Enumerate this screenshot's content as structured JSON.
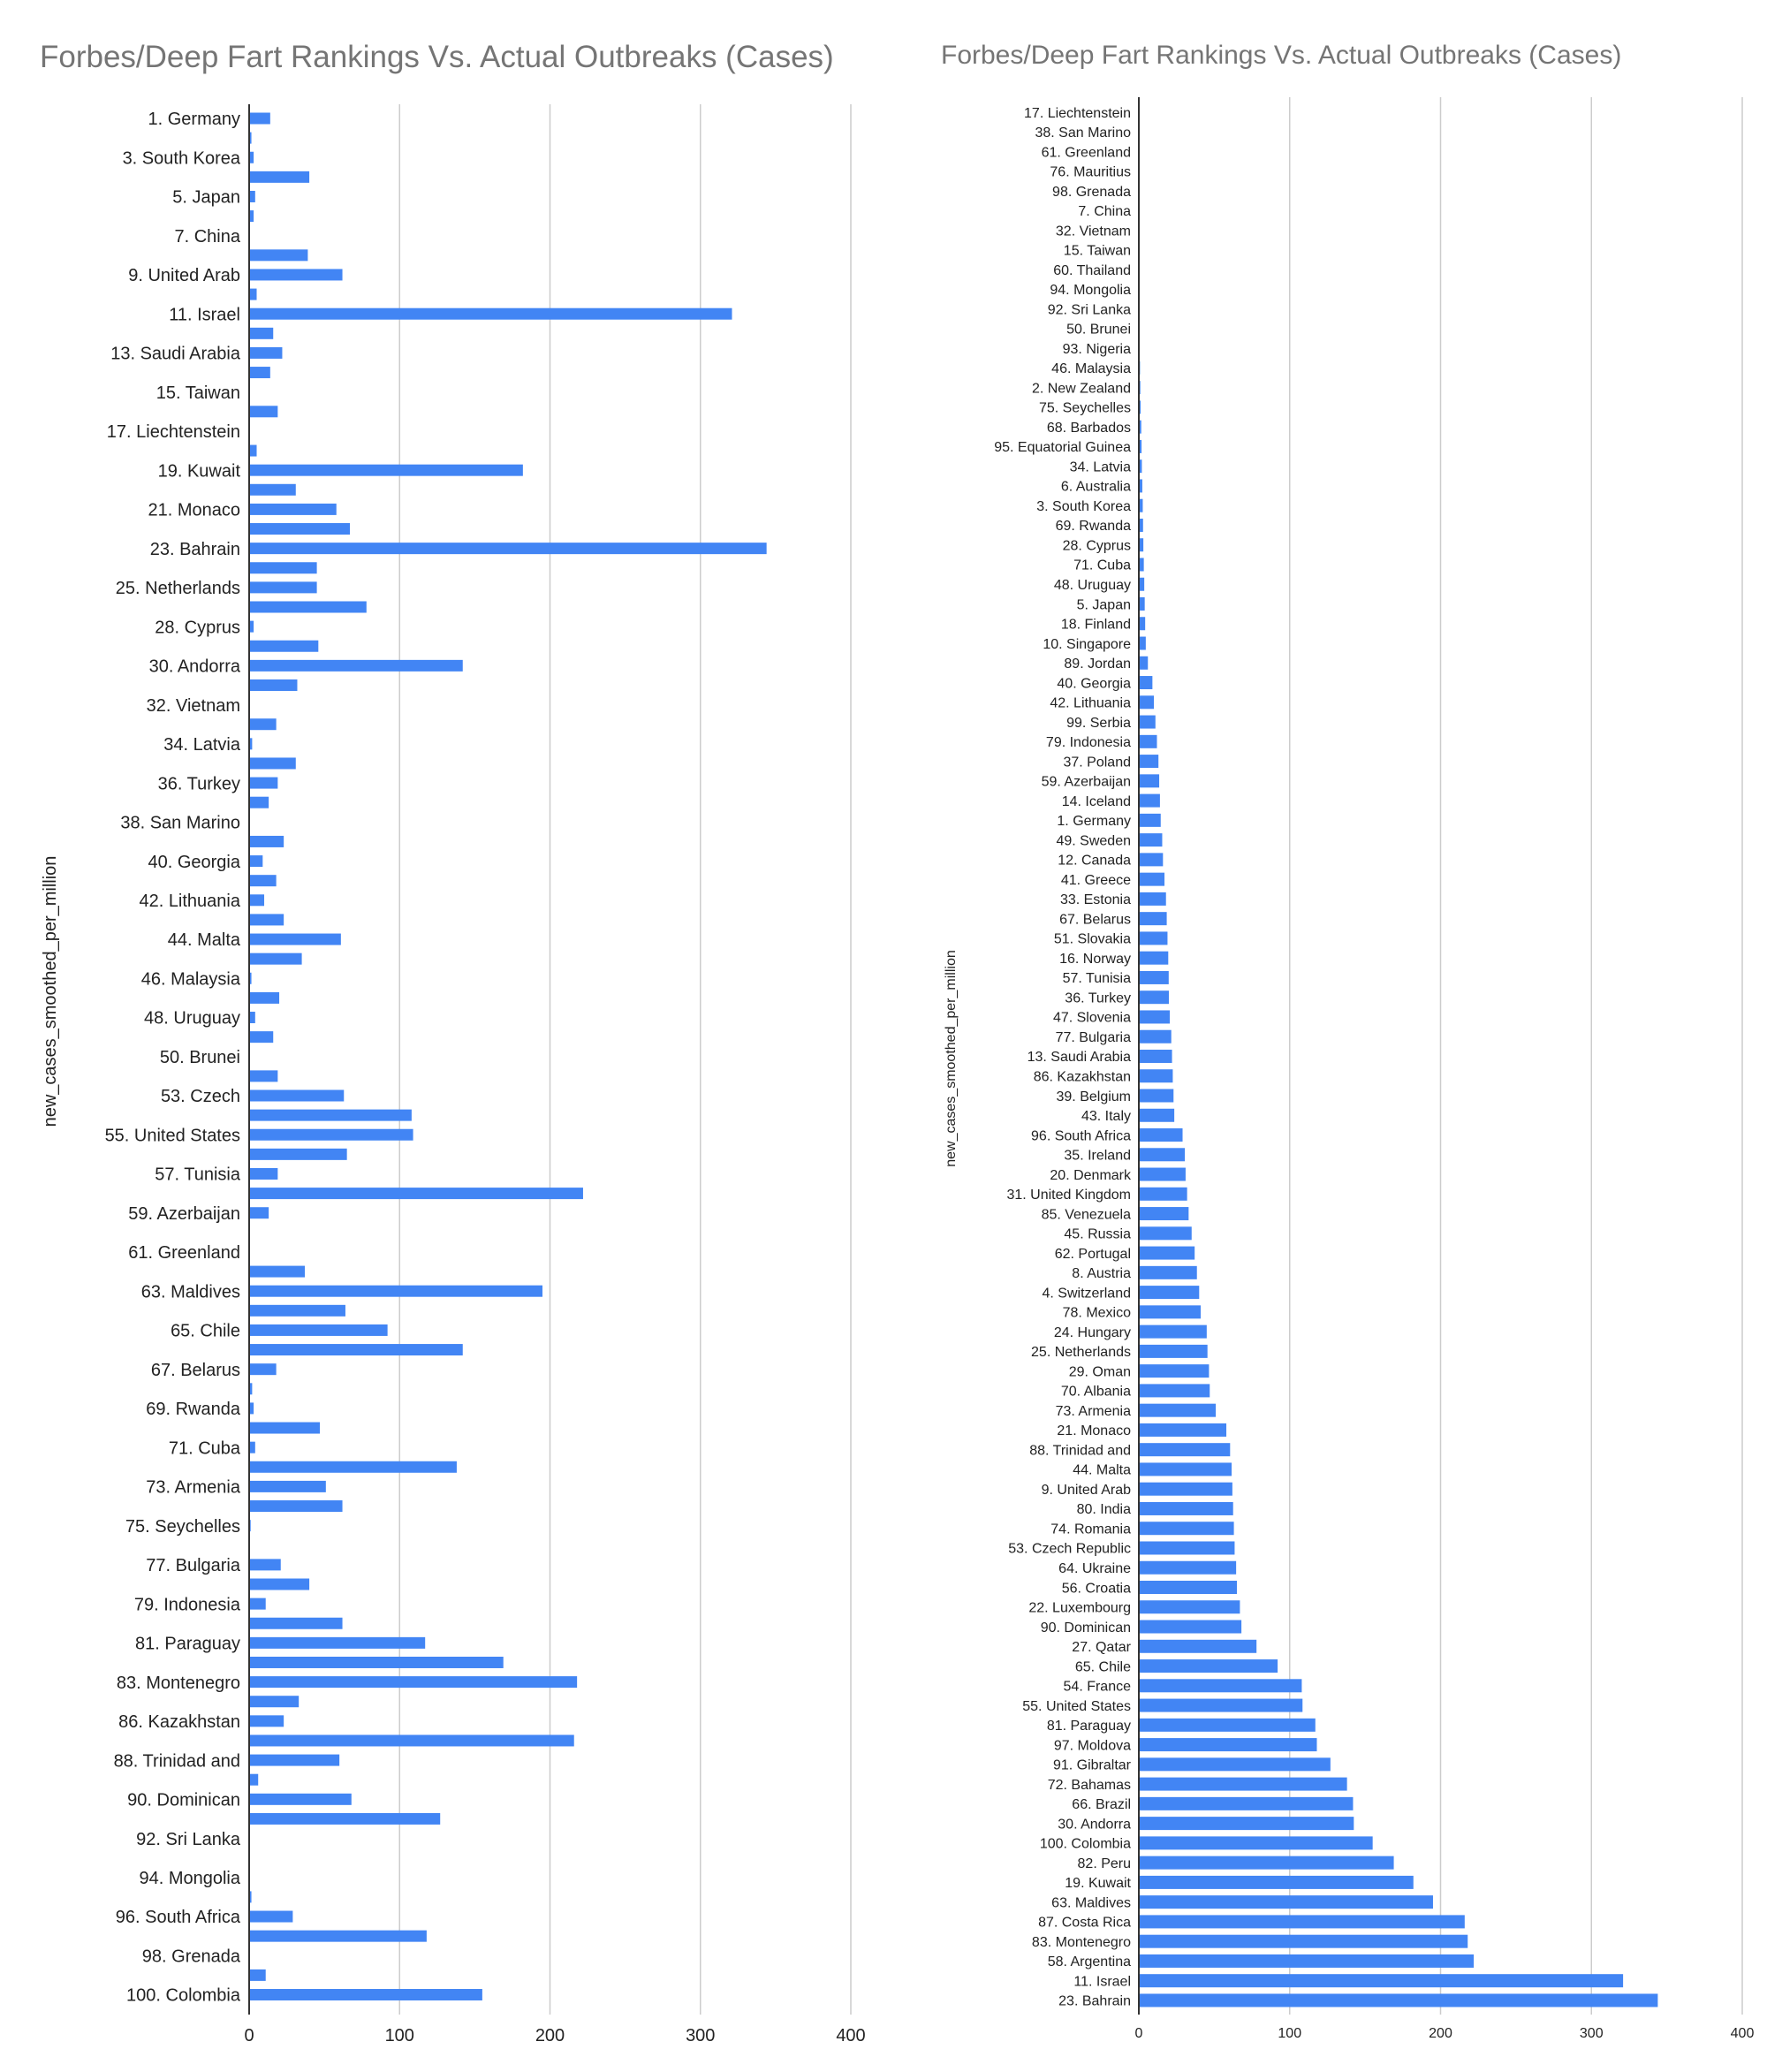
{
  "colors": {
    "bar": "#4285f4",
    "grid": "#cccccc",
    "title": "#757575"
  },
  "chart_data": [
    {
      "type": "bar",
      "orientation": "horizontal",
      "title": "Forbes/Deep Fart Rankings Vs. Actual Outbreaks (Cases)",
      "xlabel": "",
      "ylabel": "new_cases_smoothed_per_million",
      "xlim": [
        0,
        400
      ],
      "x_ticks": [
        "0",
        "100",
        "200",
        "300",
        "400"
      ],
      "grid": true,
      "legend": "none",
      "categories": [
        "1. Germany",
        "2. New Zealand",
        "3. South Korea",
        "4. Switzerland",
        "5. Japan",
        "6. Australia",
        "7. China",
        "8. Austria",
        "9. United Arab",
        "10. Singapore",
        "11. Israel",
        "12. Canada",
        "13. Saudi Arabia",
        "14. Iceland",
        "15. Taiwan",
        "16. Norway",
        "17. Liechtenstein",
        "18. Finland",
        "19. Kuwait",
        "20. Denmark",
        "21. Monaco",
        "22. Luxembourg",
        "23. Bahrain",
        "24. Hungary",
        "25. Netherlands",
        "27. Qatar",
        "28. Cyprus",
        "29. Oman",
        "30. Andorra",
        "31. United Kingdom",
        "32. Vietnam",
        "33. Estonia",
        "34. Latvia",
        "35. Ireland",
        "36. Turkey",
        "37. Poland",
        "38. San Marino",
        "39. Belgium",
        "40. Georgia",
        "41. Greece",
        "42. Lithuania",
        "43. Italy",
        "44. Malta",
        "45. Russia",
        "46. Malaysia",
        "47. Slovenia",
        "48. Uruguay",
        "49. Sweden",
        "50. Brunei",
        "51. Slovakia",
        "53. Czech",
        "54. France",
        "55. United States",
        "56. Croatia",
        "57. Tunisia",
        "58. Argentina",
        "59. Azerbaijan",
        "60. Thailand",
        "61. Greenland",
        "62. Portugal",
        "63. Maldives",
        "64. Ukraine",
        "65. Chile",
        "66. Brazil",
        "67. Belarus",
        "68. Barbados",
        "69. Rwanda",
        "70. Albania",
        "71. Cuba",
        "72. Bahamas",
        "73. Armenia",
        "74. Romania",
        "75. Seychelles",
        "76. Mauritius",
        "77. Bulgaria",
        "78. Mexico",
        "79. Indonesia",
        "80. India",
        "81. Paraguay",
        "82. Peru",
        "83. Montenegro",
        "85. Venezuela",
        "86. Kazakhstan",
        "87. Costa Rica",
        "88. Trinidad and",
        "89. Jordan",
        "90. Dominican",
        "91. Gibraltar",
        "92. Sri Lanka",
        "93. Nigeria",
        "94. Mongolia",
        "95. Equatorial Guinea",
        "96. South Africa",
        "97. Moldova",
        "98. Grenada",
        "99. Serbia",
        "100. Colombia"
      ],
      "visible_tick_labels": [
        "1. Germany",
        "3. South Korea",
        "5. Japan",
        "7. China",
        "9. United Arab",
        "11. Israel",
        "13. Saudi Arabia",
        "15. Taiwan",
        "17. Liechtenstein",
        "19. Kuwait",
        "21. Monaco",
        "23. Bahrain",
        "25. Netherlands",
        "28. Cyprus",
        "30. Andorra",
        "32. Vietnam",
        "34. Latvia",
        "36. Turkey",
        "38. San Marino",
        "40. Georgia",
        "42. Lithuania",
        "44. Malta",
        "46. Malaysia",
        "48. Uruguay",
        "50. Brunei",
        "53. Czech",
        "55. United States",
        "57. Tunisia",
        "59. Azerbaijan",
        "61. Greenland",
        "63. Maldives",
        "65. Chile",
        "67. Belarus",
        "69. Rwanda",
        "71. Cuba",
        "73. Armenia",
        "75. Seychelles",
        "77. Bulgaria",
        "79. Indonesia",
        "81. Paraguay",
        "83. Montenegro",
        "86. Kazakhstan",
        "88. Trinidad and",
        "90. Dominican",
        "92. Sri Lanka",
        "94. Mongolia",
        "96. South Africa",
        "98. Grenada",
        "100. Colombia"
      ],
      "values": [
        14,
        1.5,
        3,
        40,
        4,
        3,
        0,
        39,
        62,
        5,
        321,
        16,
        22,
        14,
        0,
        19,
        0,
        5,
        182,
        31,
        58,
        67,
        344,
        45,
        45,
        78,
        3,
        46,
        142,
        32,
        0,
        18,
        2,
        31,
        19,
        13,
        0,
        23,
        9,
        18,
        10,
        23,
        61,
        35,
        1.5,
        20,
        4,
        16,
        0,
        19,
        63,
        108,
        109,
        65,
        19,
        222,
        13,
        0,
        0,
        37,
        195,
        64,
        92,
        142,
        18,
        2,
        3,
        47,
        4,
        138,
        51,
        62,
        1,
        0,
        21,
        40,
        11,
        62,
        117,
        169,
        218,
        33,
        23,
        216,
        60,
        6,
        68,
        127,
        0,
        0.5,
        0,
        1.5,
        29,
        118,
        0,
        11,
        155
      ]
    },
    {
      "type": "bar",
      "orientation": "horizontal",
      "title": "Forbes/Deep Fart Rankings Vs. Actual Outbreaks (Cases)",
      "xlabel": "",
      "ylabel": "new_cases_smoothed_per_million",
      "xlim": [
        0,
        400
      ],
      "x_ticks": [
        "0",
        "100",
        "200",
        "300",
        "400"
      ],
      "grid": true,
      "legend": "none",
      "categories": [
        "17. Liechtenstein",
        "38. San Marino",
        "61. Greenland",
        "76. Mauritius",
        "98. Grenada",
        "7. China",
        "32. Vietnam",
        "15. Taiwan",
        "60. Thailand",
        "94. Mongolia",
        "92. Sri Lanka",
        "50. Brunei",
        "93. Nigeria",
        "46. Malaysia",
        "2. New Zealand",
        "75. Seychelles",
        "68. Barbados",
        "95. Equatorial Guinea",
        "34. Latvia",
        "6. Australia",
        "3. South Korea",
        "69. Rwanda",
        "28. Cyprus",
        "71. Cuba",
        "48. Uruguay",
        "5. Japan",
        "18. Finland",
        "10. Singapore",
        "89. Jordan",
        "40. Georgia",
        "42. Lithuania",
        "99. Serbia",
        "79. Indonesia",
        "37. Poland",
        "59. Azerbaijan",
        "14. Iceland",
        "1. Germany",
        "49. Sweden",
        "12. Canada",
        "41. Greece",
        "33. Estonia",
        "67. Belarus",
        "51. Slovakia",
        "16. Norway",
        "57. Tunisia",
        "36. Turkey",
        "47. Slovenia",
        "77. Bulgaria",
        "13. Saudi Arabia",
        "86. Kazakhstan",
        "39. Belgium",
        "43. Italy",
        "96. South Africa",
        "35. Ireland",
        "20. Denmark",
        "31. United Kingdom",
        "85. Venezuela",
        "45. Russia",
        "62. Portugal",
        "8. Austria",
        "4. Switzerland",
        "78. Mexico",
        "24. Hungary",
        "25. Netherlands",
        "29. Oman",
        "70. Albania",
        "73. Armenia",
        "21. Monaco",
        "88. Trinidad and",
        "44. Malta",
        "9. United Arab",
        "80. India",
        "74. Romania",
        "53. Czech Republic",
        "64. Ukraine",
        "56. Croatia",
        "22. Luxembourg",
        "90. Dominican",
        "27. Qatar",
        "65. Chile",
        "54. France",
        "55. United States",
        "81. Paraguay",
        "97. Moldova",
        "91. Gibraltar",
        "72. Bahamas",
        "66. Brazil",
        "30. Andorra",
        "100. Colombia",
        "82. Peru",
        "19. Kuwait",
        "63. Maldives",
        "87. Costa Rica",
        "83. Montenegro",
        "58. Argentina",
        "11. Israel",
        "23. Bahrain"
      ],
      "values": [
        0,
        0,
        0,
        0,
        0,
        0,
        0,
        0,
        0,
        0,
        0.3,
        0.4,
        0.5,
        0.8,
        1,
        1.2,
        1.6,
        1.8,
        2,
        2.3,
        2.6,
        2.8,
        3,
        3.3,
        3.6,
        3.9,
        4.2,
        4.6,
        6,
        9,
        10,
        11,
        12,
        13,
        13.5,
        14,
        14.5,
        15.5,
        16,
        17,
        18,
        18.5,
        19,
        19.5,
        19.8,
        19.9,
        20.5,
        21.5,
        22,
        22.5,
        23,
        23.5,
        29,
        30.5,
        31,
        32,
        33,
        35,
        37,
        38.5,
        40,
        41,
        45,
        45.5,
        46.5,
        47,
        51,
        58,
        60.5,
        61.5,
        62,
        62.5,
        63,
        63.5,
        64.5,
        65,
        67,
        68,
        78,
        92,
        108,
        108.5,
        117,
        118,
        127,
        138,
        142,
        142.5,
        155,
        169,
        182,
        195,
        216,
        218,
        222,
        321,
        344
      ]
    }
  ]
}
